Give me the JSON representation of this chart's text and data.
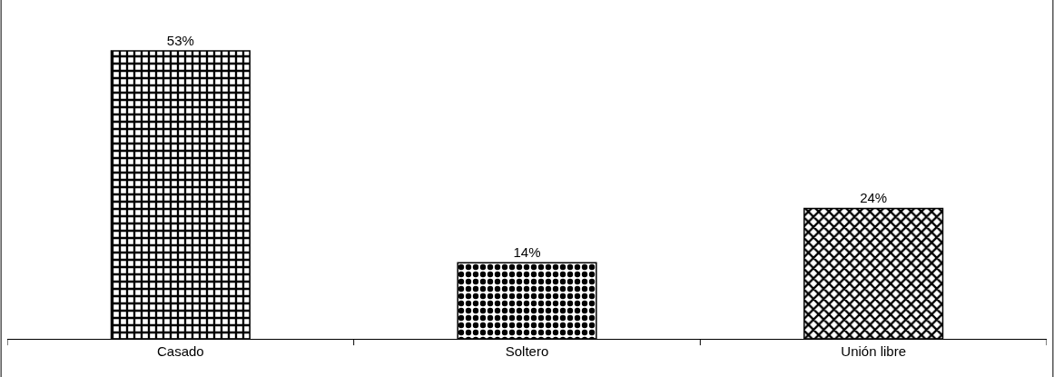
{
  "chart_data": {
    "type": "bar",
    "categories": [
      "Casado",
      "Soltero",
      "Unión libre"
    ],
    "values": [
      53,
      14,
      24
    ],
    "colors": [
      "#000000",
      "#000000",
      "#000000"
    ],
    "value_labels": [
      "53%",
      "14%",
      "24%"
    ],
    "tick_labels": "x"
  }
}
